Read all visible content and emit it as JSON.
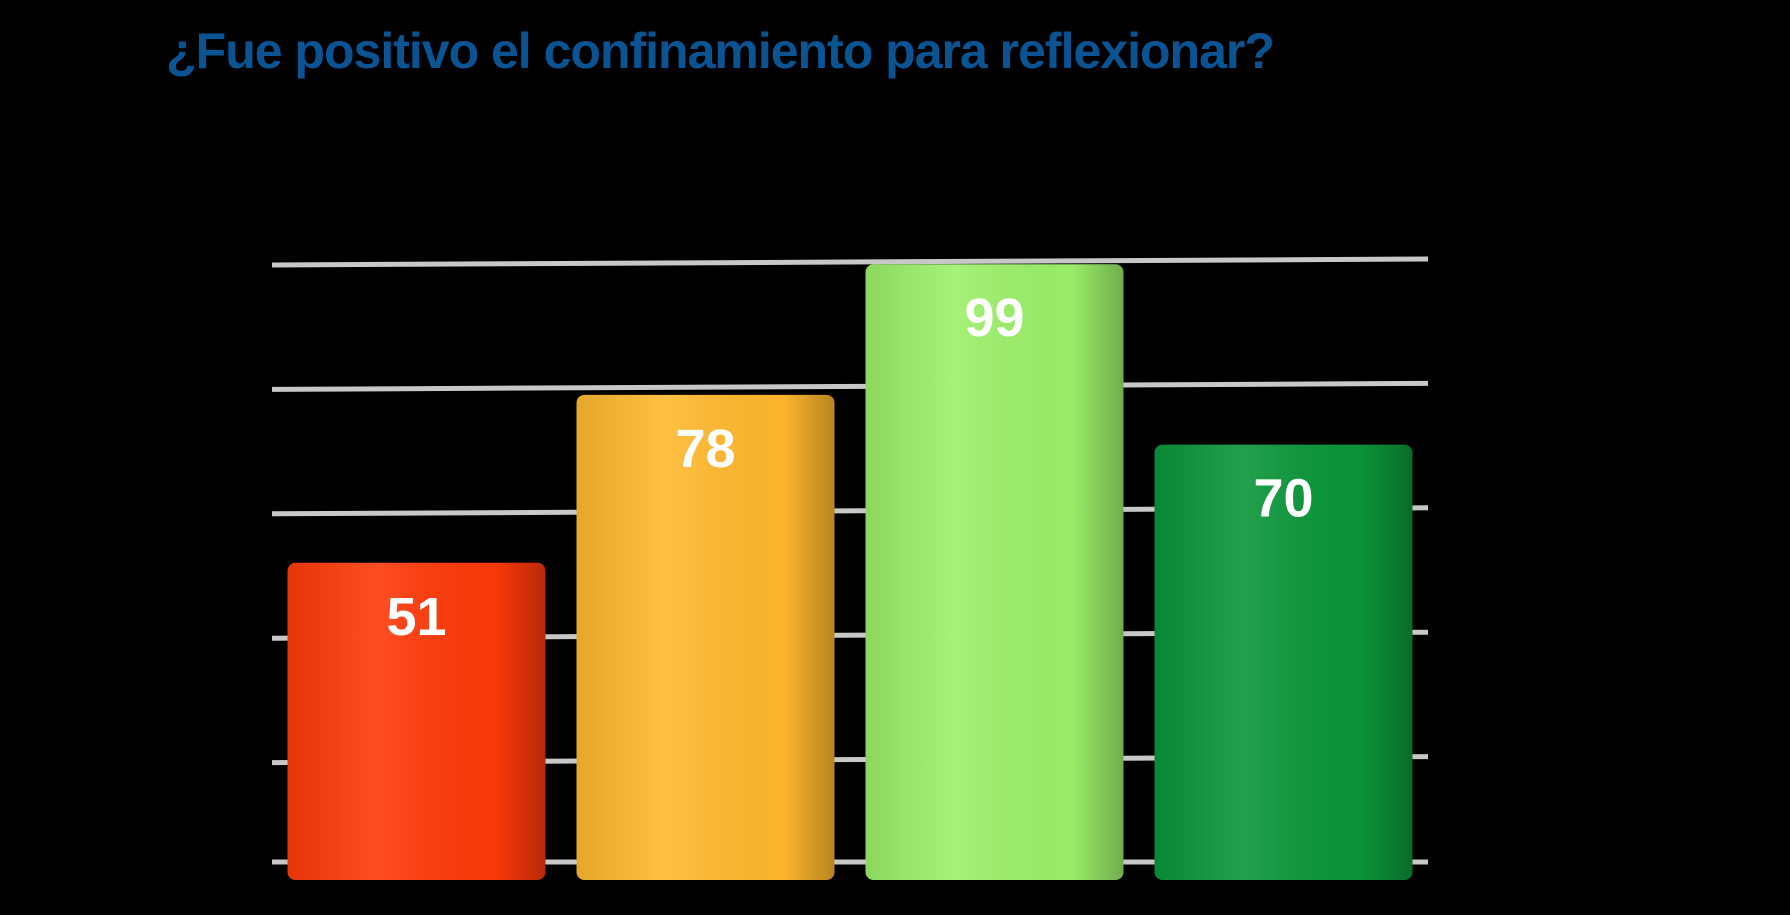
{
  "chart_data": {
    "type": "bar",
    "title": "¿Fue positivo el confinamiento para reflexionar?",
    "categories": [
      "",
      "",
      "",
      ""
    ],
    "values": [
      51,
      78,
      99,
      70
    ],
    "colors": [
      "#ff3a0a",
      "#ffb92e",
      "#9cf06a",
      "#0b963a"
    ],
    "ylim": [
      0,
      100
    ],
    "grid": true,
    "data_labels": [
      "51",
      "78",
      "99",
      "70"
    ]
  }
}
